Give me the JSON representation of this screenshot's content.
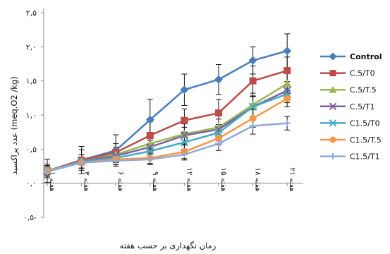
{
  "chart_data": {
    "type": "line",
    "title": "",
    "xlabel": "زمان نگهداری بر حسب هفته",
    "ylabel": "عدد پراکسید (meq.O2 /kg)",
    "ytick_labels": [
      "۰,۵-",
      "۰,۰",
      "۰,۵",
      "۱,۰",
      "۱,۵",
      "۲,۰",
      "۲,۵"
    ],
    "ytick_values": [
      -0.5,
      0,
      0.5,
      1.0,
      1.5,
      2.0,
      2.5
    ],
    "ylim": [
      -0.5,
      2.5
    ],
    "categories": [
      "هفته ۱",
      "هفته ۳",
      "هفته ۶",
      "هفته ۹",
      "هفته ۱۲",
      "هفته ۱۵",
      "هفته ۱۸",
      "هفته ۲۱"
    ],
    "legend_position": "right",
    "series": [
      {
        "name": "Control",
        "color": "#4a7ebb",
        "marker": "diamond",
        "values": [
          0.18,
          0.34,
          0.48,
          0.93,
          1.37,
          1.52,
          1.8,
          1.94
        ],
        "errors": [
          0.17,
          0.2,
          0.23,
          0.3,
          0.23,
          0.22,
          0.2,
          0.25
        ]
      },
      {
        "name": "C.5/T0",
        "color": "#be4b48",
        "marker": "square",
        "values": [
          0.18,
          0.34,
          0.45,
          0.7,
          0.92,
          1.03,
          1.5,
          1.65
        ],
        "errors": [
          0.1,
          0.15,
          0.13,
          0.2,
          0.17,
          0.2,
          0.22,
          0.2
        ]
      },
      {
        "name": "C.5/T.5",
        "color": "#98b954",
        "marker": "triangle",
        "values": [
          0.18,
          0.32,
          0.42,
          0.58,
          0.72,
          0.82,
          1.15,
          1.46
        ],
        "errors": [
          0.08,
          0.1,
          0.11,
          0.12,
          0.15,
          0.17,
          0.17,
          0.15
        ]
      },
      {
        "name": "C.5/T1",
        "color": "#7d60a0",
        "marker": "x",
        "values": [
          0.18,
          0.32,
          0.4,
          0.53,
          0.7,
          0.79,
          1.12,
          1.36
        ],
        "errors": [
          0.08,
          0.1,
          0.1,
          0.1,
          0.12,
          0.15,
          0.15,
          0.13
        ]
      },
      {
        "name": "C1.5/T0",
        "color": "#46aac5",
        "marker": "x",
        "values": [
          0.18,
          0.32,
          0.37,
          0.47,
          0.6,
          0.74,
          1.12,
          1.31
        ],
        "errors": [
          0.08,
          0.1,
          0.1,
          0.1,
          0.12,
          0.12,
          0.15,
          0.13
        ]
      },
      {
        "name": "C1.5/T.5",
        "color": "#f79646",
        "marker": "circle",
        "values": [
          0.18,
          0.3,
          0.35,
          0.37,
          0.46,
          0.66,
          0.95,
          1.24
        ],
        "errors": [
          0.06,
          0.08,
          0.08,
          0.08,
          0.1,
          0.1,
          0.13,
          0.12
        ]
      },
      {
        "name": "C1.5/T1",
        "color": "#8faadc",
        "marker": "plus",
        "values": [
          0.17,
          0.3,
          0.33,
          0.35,
          0.42,
          0.58,
          0.84,
          0.88
        ],
        "errors": [
          0.05,
          0.08,
          0.08,
          0.08,
          0.08,
          0.1,
          0.12,
          0.1
        ]
      }
    ]
  }
}
